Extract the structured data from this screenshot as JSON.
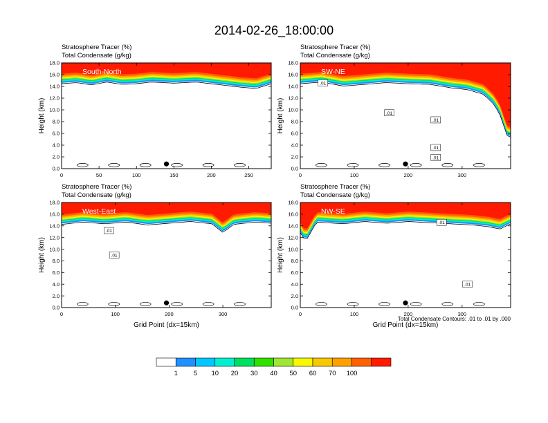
{
  "title": "2014-02-26_18:00:00",
  "colors": {
    "levels": [
      "#ffffff",
      "#1e90ff",
      "#00c8ff",
      "#00f0d0",
      "#00e060",
      "#32e000",
      "#a0e632",
      "#f8f800",
      "#f8c800",
      "#ffa000",
      "#ff6000",
      "#ff1a00"
    ],
    "contour": "#000000"
  },
  "chart_data": {
    "type": "heatmap",
    "panels": [
      {
        "subtitle1": "Stratosphere Tracer   (%)",
        "subtitle2": "Total Condensate   (g/kg)",
        "name": "South-North",
        "xlim": [
          0,
          280
        ],
        "xticks": [
          "0",
          "50",
          "100",
          "150",
          "200",
          "250"
        ],
        "ylabel": "Height (km)",
        "ylim": [
          0,
          18
        ],
        "yticks": [
          "0.0",
          "2.0",
          "4.0",
          "6.0",
          "8.0",
          "10.0",
          "12.0",
          "14.0",
          "16.0",
          "18.0"
        ],
        "xlabel": "",
        "marker_x": 140,
        "contour_labels": [],
        "tropopause": [
          [
            0,
            14.6
          ],
          [
            20,
            14.8
          ],
          [
            40,
            14.4
          ],
          [
            60,
            14.9
          ],
          [
            80,
            14.5
          ],
          [
            100,
            14.6
          ],
          [
            120,
            14.9
          ],
          [
            150,
            14.7
          ],
          [
            180,
            14.9
          ],
          [
            220,
            14.3
          ],
          [
            240,
            14.0
          ],
          [
            260,
            13.8
          ],
          [
            280,
            14.6
          ]
        ]
      },
      {
        "subtitle1": "Stratosphere Tracer   (%)",
        "subtitle2": "Total Condensate   (g/kg)",
        "name": "SW-NE",
        "xlim": [
          0,
          390
        ],
        "xticks": [
          "0",
          "100",
          "200",
          "300"
        ],
        "ylabel": "Height (km)",
        "ylim": [
          0,
          18
        ],
        "yticks": [
          "0.0",
          "2.0",
          "4.0",
          "6.0",
          "8.0",
          "10.0",
          "12.0",
          "14.0",
          "16.0",
          "18.0"
        ],
        "xlabel": "",
        "marker_x": 195,
        "contour_labels": [
          {
            "text": ".01",
            "x": 42,
            "y": 14.6
          },
          {
            "text": ".01",
            "x": 165,
            "y": 9.5
          },
          {
            "text": ".01",
            "x": 251,
            "y": 8.3
          },
          {
            "text": ".01",
            "x": 251,
            "y": 3.6
          },
          {
            "text": ".01",
            "x": 251,
            "y": 1.9
          }
        ],
        "tropopause": [
          [
            0,
            14.6
          ],
          [
            40,
            14.9
          ],
          [
            80,
            14.2
          ],
          [
            120,
            14.5
          ],
          [
            160,
            14.8
          ],
          [
            200,
            14.6
          ],
          [
            240,
            14.5
          ],
          [
            280,
            13.9
          ],
          [
            310,
            13.6
          ],
          [
            340,
            12.8
          ],
          [
            360,
            11.0
          ],
          [
            375,
            8.5
          ],
          [
            380,
            6.0
          ],
          [
            390,
            5.5
          ]
        ]
      },
      {
        "subtitle1": "Stratosphere Tracer   (%)",
        "subtitle2": "Total Condensate   (g/kg)",
        "name": "West-East",
        "xlim": [
          0,
          390
        ],
        "xticks": [
          "0",
          "100",
          "200",
          "300"
        ],
        "ylabel": "Height (km)",
        "ylim": [
          0,
          18
        ],
        "yticks": [
          "0.0",
          "2.0",
          "4.0",
          "6.0",
          "8.0",
          "10.0",
          "12.0",
          "14.0",
          "16.0",
          "18.0"
        ],
        "xlabel": "Grid Point (dx=15km)",
        "marker_x": 195,
        "contour_labels": [
          {
            "text": ".01",
            "x": 88,
            "y": 13.2
          },
          {
            "text": ".01",
            "x": 98,
            "y": 9.0
          }
        ],
        "tropopause": [
          [
            0,
            14.4
          ],
          [
            40,
            14.8
          ],
          [
            80,
            14.5
          ],
          [
            120,
            14.8
          ],
          [
            160,
            14.3
          ],
          [
            200,
            14.6
          ],
          [
            240,
            14.9
          ],
          [
            280,
            14.5
          ],
          [
            300,
            13.0
          ],
          [
            320,
            14.4
          ],
          [
            360,
            14.8
          ],
          [
            390,
            14.6
          ]
        ]
      },
      {
        "subtitle1": "Stratosphere Tracer   (%)",
        "subtitle2": "Total Condensate   (g/kg)",
        "name": "NW-SE",
        "xlim": [
          0,
          390
        ],
        "xticks": [
          "0",
          "100",
          "200",
          "300"
        ],
        "ylabel": "Height (km)",
        "ylim": [
          0,
          18
        ],
        "yticks": [
          "0.0",
          "2.0",
          "4.0",
          "6.0",
          "8.0",
          "10.0",
          "12.0",
          "14.0",
          "16.0",
          "18.0"
        ],
        "xlabel": "Grid Point (dx=15km)",
        "marker_x": 195,
        "contour_labels": [
          {
            "text": ".01",
            "x": 262,
            "y": 14.6
          },
          {
            "text": ".01",
            "x": 310,
            "y": 4.0
          }
        ],
        "tropopause": [
          [
            0,
            13.0
          ],
          [
            10,
            11.5
          ],
          [
            30,
            14.8
          ],
          [
            80,
            14.5
          ],
          [
            120,
            14.9
          ],
          [
            160,
            14.6
          ],
          [
            200,
            14.9
          ],
          [
            240,
            14.7
          ],
          [
            280,
            14.5
          ],
          [
            320,
            14.3
          ],
          [
            350,
            14.0
          ],
          [
            370,
            13.6
          ],
          [
            390,
            14.5
          ]
        ]
      }
    ],
    "note": "Total Condensate Contours: .01 to .01 by .000",
    "colorbar": {
      "labels": [
        "1",
        "5",
        "10",
        "20",
        "30",
        "40",
        "50",
        "60",
        "70",
        "100"
      ]
    }
  }
}
